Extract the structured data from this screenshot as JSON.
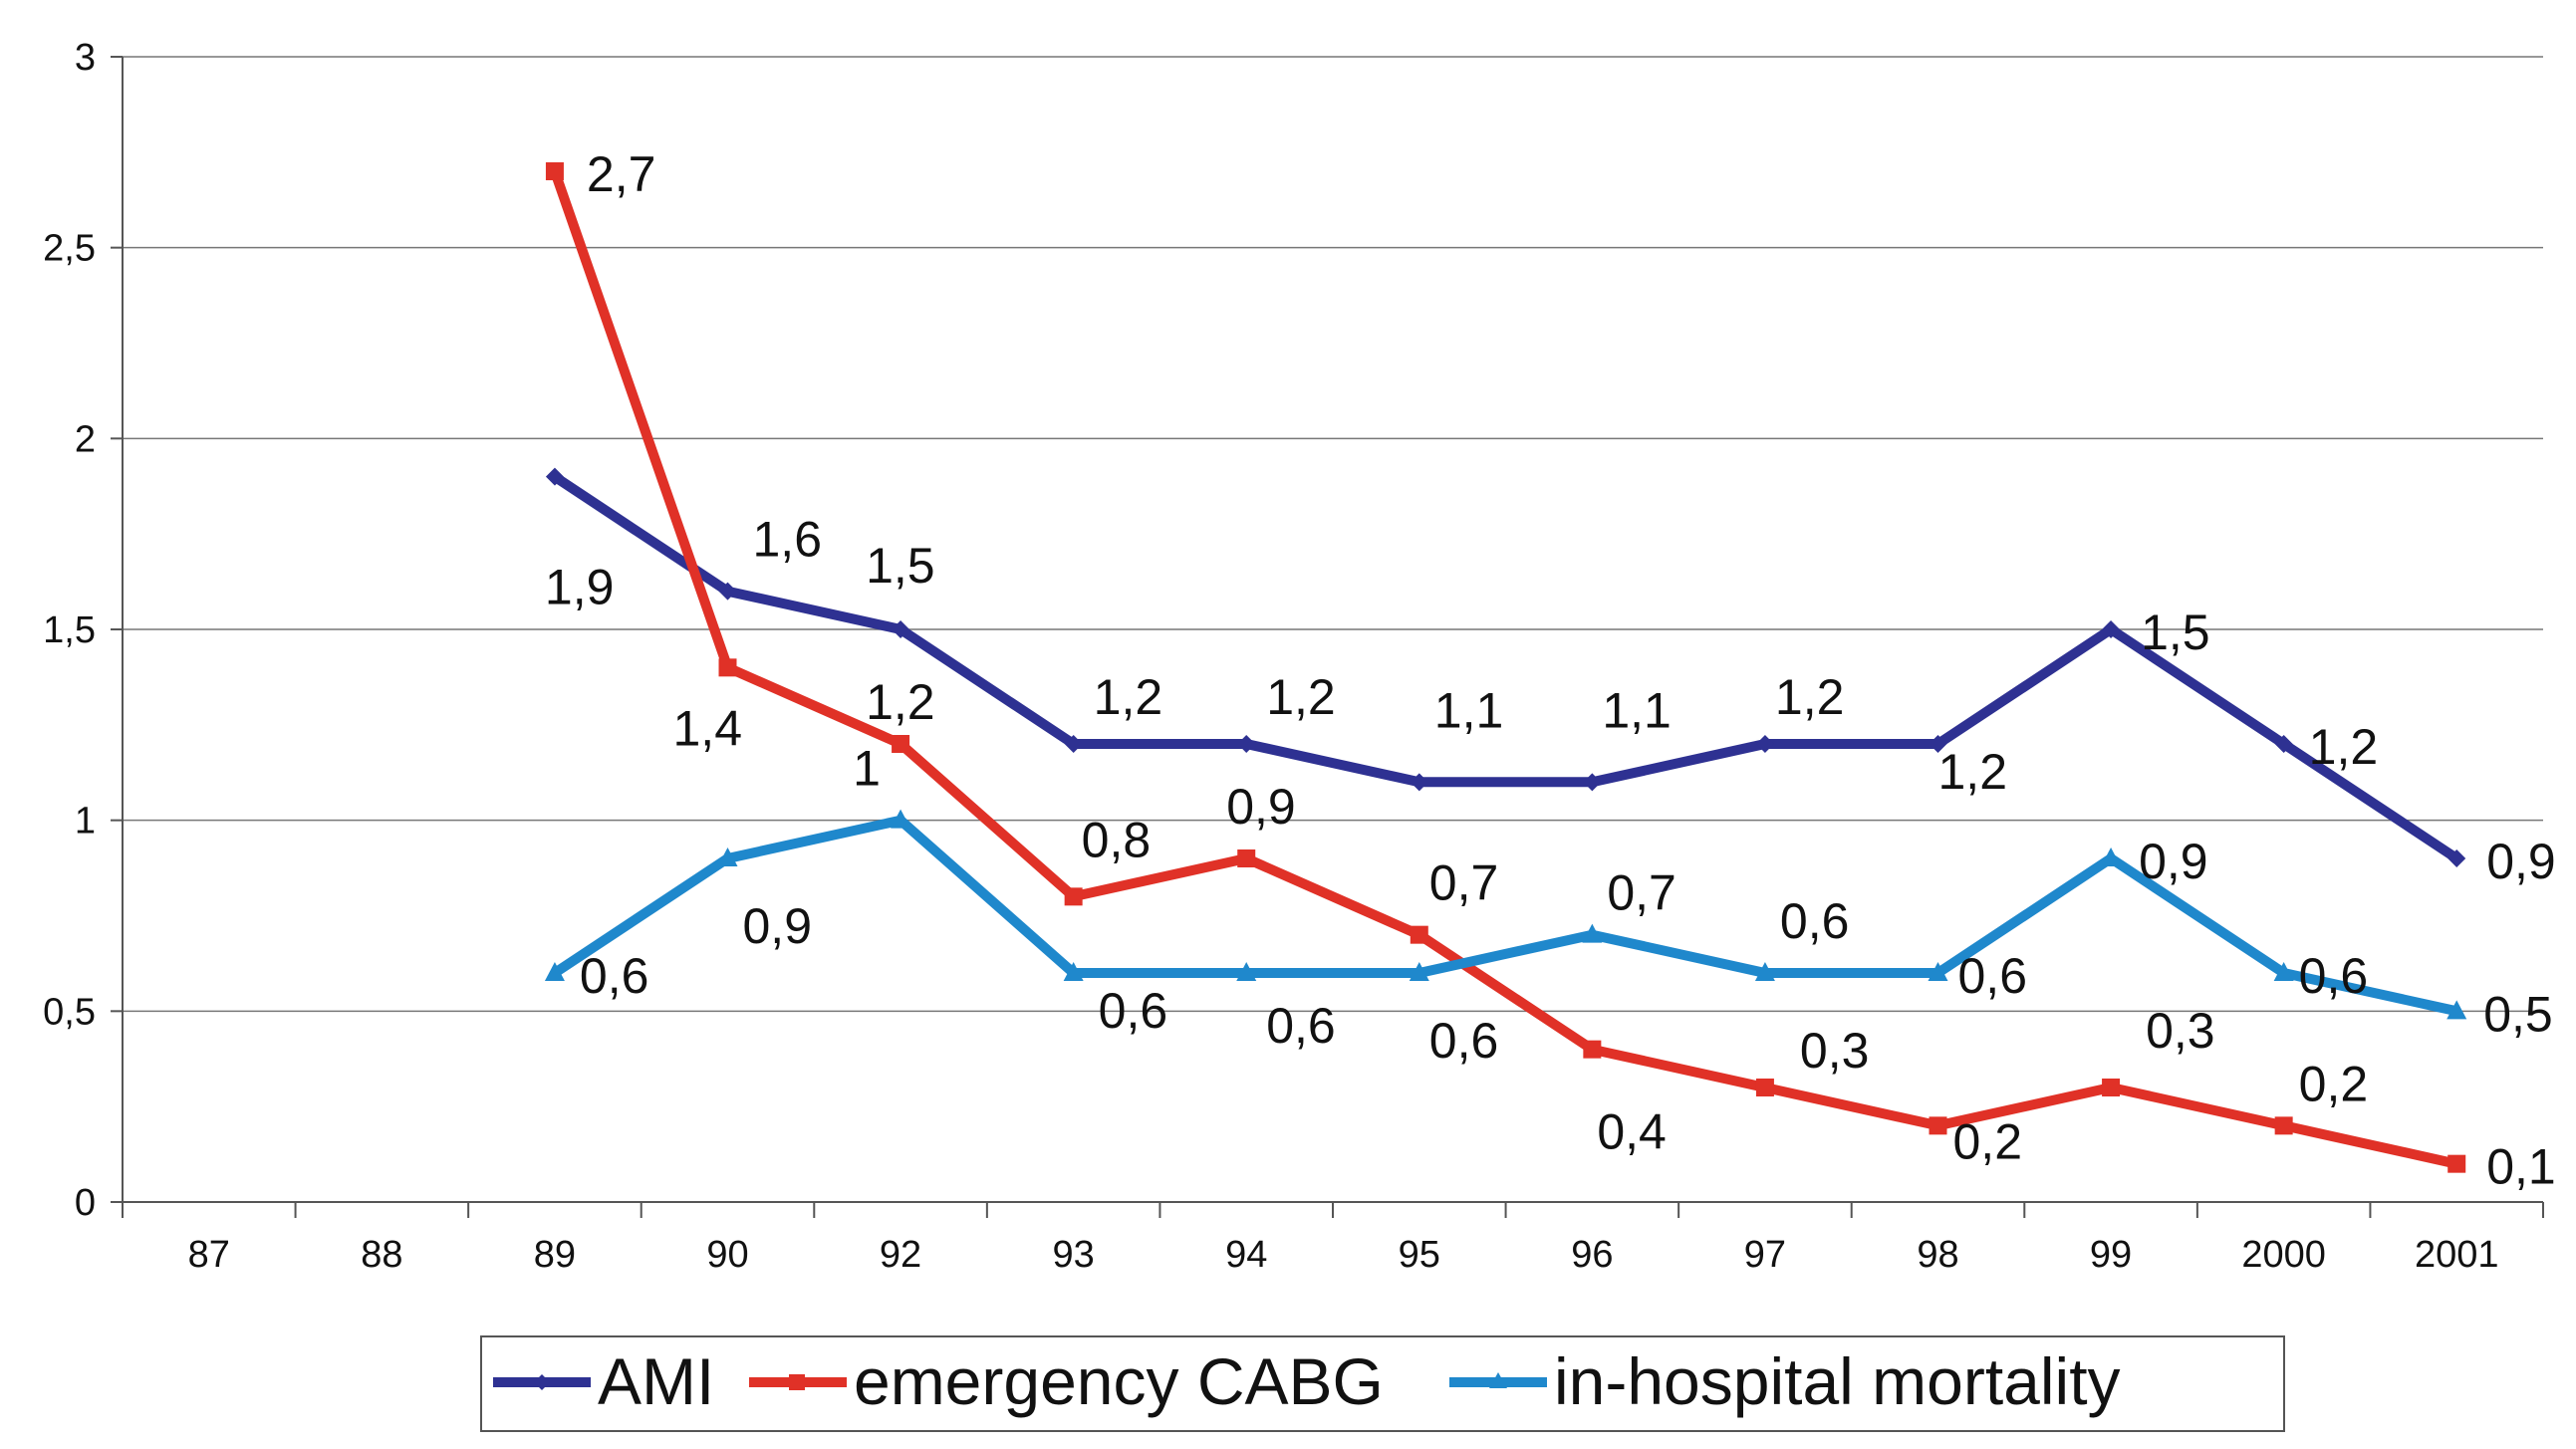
{
  "chart_data": {
    "type": "line",
    "title": "",
    "xlabel": "",
    "ylabel": "",
    "categories": [
      "87",
      "88",
      "89",
      "90",
      "92",
      "93",
      "94",
      "95",
      "96",
      "97",
      "98",
      "99",
      "2000",
      "2001"
    ],
    "ylim": [
      0,
      3
    ],
    "yticks": [
      "0",
      "0,5",
      "1",
      "1,5",
      "2",
      "2,5",
      "3"
    ],
    "grid": true,
    "legend_position": "bottom",
    "series": [
      {
        "name": "AMI",
        "color": "#2e3192",
        "marker": "diamond",
        "values": [
          null,
          null,
          1.9,
          1.6,
          1.5,
          1.2,
          1.2,
          1.1,
          1.1,
          1.2,
          1.2,
          1.5,
          1.2,
          0.9
        ],
        "labels": [
          null,
          null,
          "1,9",
          "1,6",
          "1,5",
          "1,2",
          "1,2",
          "1,1",
          "1,1",
          "1,2",
          "1,2",
          "1,5",
          "1,2",
          "0,9"
        ]
      },
      {
        "name": "emergency CABG",
        "color": "#e03127",
        "marker": "square",
        "values": [
          null,
          null,
          2.7,
          1.4,
          1.2,
          0.8,
          0.9,
          0.7,
          0.4,
          0.3,
          0.2,
          0.3,
          0.2,
          0.1
        ],
        "labels": [
          null,
          null,
          "2,7",
          "1,4",
          "1,2",
          "0,8",
          "0,9",
          "0,7",
          "0,4",
          "0,3",
          "0,2",
          "0,3",
          "0,2",
          "0,1"
        ]
      },
      {
        "name": "in-hospital mortality",
        "color": "#1f88cc",
        "marker": "triangle",
        "values": [
          null,
          null,
          0.6,
          0.9,
          1.0,
          0.6,
          0.6,
          0.6,
          0.7,
          0.6,
          0.6,
          0.9,
          0.6,
          0.5
        ],
        "labels": [
          null,
          null,
          "0,6",
          "0,9",
          "1",
          "0,6",
          "0,6",
          "0,6",
          "0,7",
          "0,6",
          "0,6",
          "0,9",
          "0,6",
          "0,5"
        ]
      }
    ]
  }
}
